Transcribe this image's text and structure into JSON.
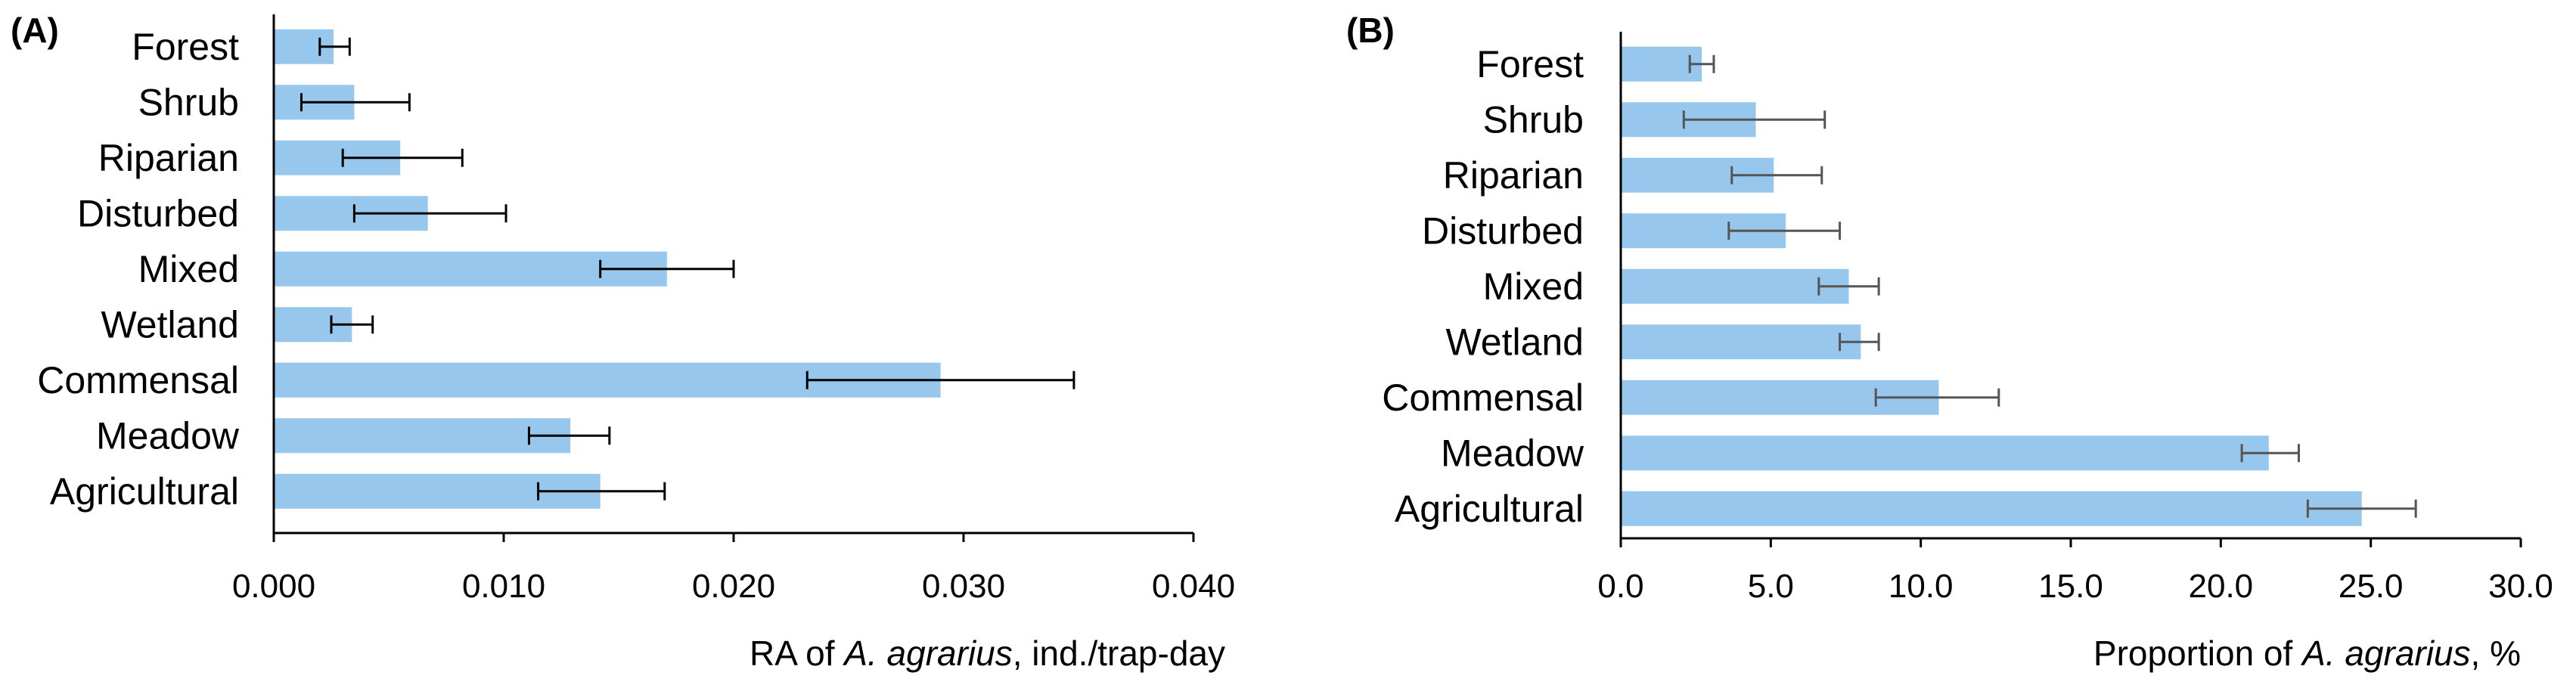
{
  "chart_data": [
    {
      "type": "bar",
      "orientation": "horizontal",
      "panel_label": "(A)",
      "categories": [
        "Forest",
        "Shrub",
        "Riparian",
        "Disturbed",
        "Mixed",
        "Wetland",
        "Commensal",
        "Meadow",
        "Agricultural"
      ],
      "values": [
        0.0026,
        0.0035,
        0.0055,
        0.0067,
        0.0171,
        0.0034,
        0.029,
        0.0129,
        0.0142
      ],
      "error_low": [
        0.002,
        0.0012,
        0.003,
        0.0035,
        0.0142,
        0.0025,
        0.0232,
        0.0111,
        0.0115
      ],
      "error_high": [
        0.0033,
        0.0059,
        0.0082,
        0.0101,
        0.02,
        0.0043,
        0.0348,
        0.0146,
        0.017
      ],
      "xlim": [
        0,
        0.04
      ],
      "xticks": [
        "0.000",
        "0.010",
        "0.020",
        "0.030",
        "0.040"
      ],
      "xticks_values": [
        0,
        0.01,
        0.02,
        0.03,
        0.04
      ],
      "xlabel_pre": "RA of ",
      "xlabel_italic": "A. agrarius",
      "xlabel_post": ", ind./trap-day",
      "bar_color": "#97c7ec",
      "error_color": "#000000"
    },
    {
      "type": "bar",
      "orientation": "horizontal",
      "panel_label": "(B)",
      "categories": [
        "Forest",
        "Shrub",
        "Riparian",
        "Disturbed",
        "Mixed",
        "Wetland",
        "Commensal",
        "Meadow",
        "Agricultural"
      ],
      "values": [
        2.7,
        4.5,
        5.1,
        5.5,
        7.6,
        8.0,
        10.6,
        21.6,
        24.7
      ],
      "error_low": [
        2.3,
        2.1,
        3.7,
        3.6,
        6.6,
        7.3,
        8.5,
        20.7,
        22.9
      ],
      "error_high": [
        3.1,
        6.8,
        6.7,
        7.3,
        8.6,
        8.6,
        12.6,
        22.6,
        26.5
      ],
      "xlim": [
        0,
        30
      ],
      "xticks": [
        "0.0",
        "5.0",
        "10.0",
        "15.0",
        "20.0",
        "25.0",
        "30.0"
      ],
      "xticks_values": [
        0,
        5,
        10,
        15,
        20,
        25,
        30
      ],
      "xlabel_pre": "Proportion of ",
      "xlabel_italic": "A. agrarius",
      "xlabel_post": ", %",
      "bar_color": "#97c7ec",
      "error_color": "#555555"
    }
  ]
}
